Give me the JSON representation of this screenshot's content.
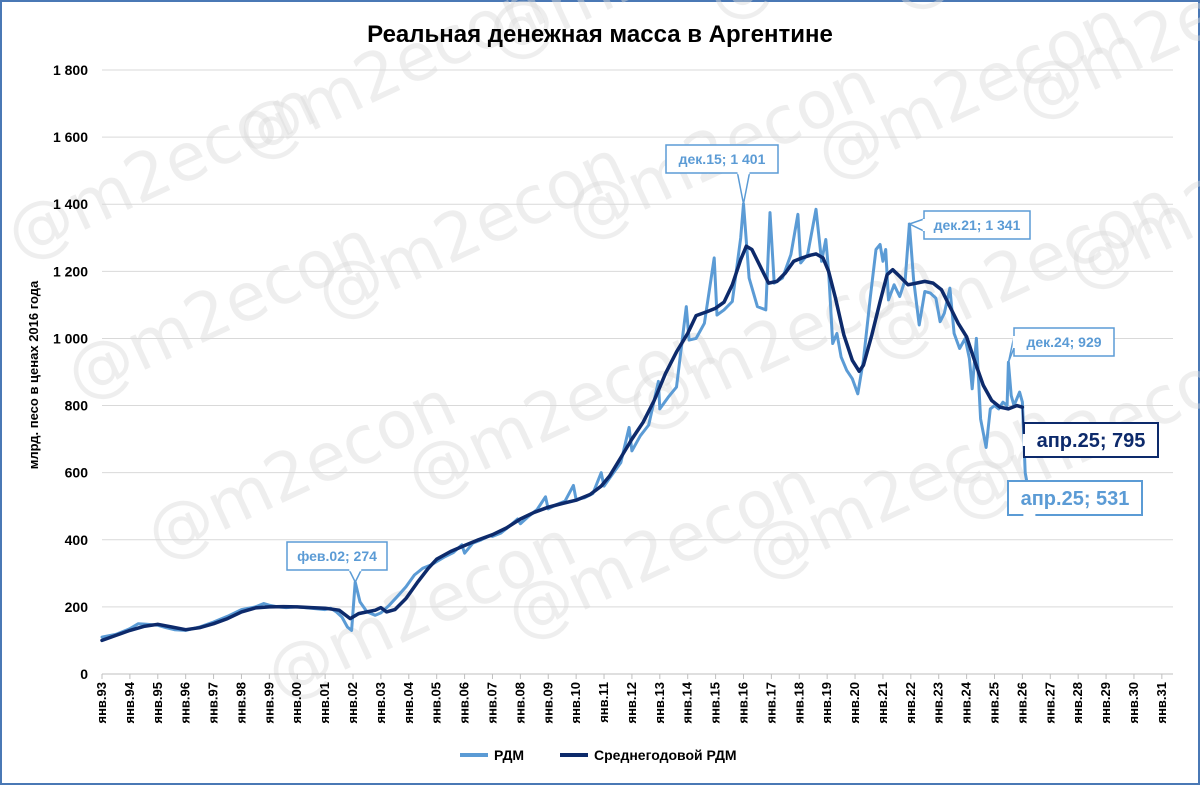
{
  "chart_data": {
    "type": "line",
    "title": "Реальная денежная масса в Аргентине",
    "ylabel": "млрд. песо в ценах 2016 года",
    "xlabel": "",
    "ylim": [
      0,
      1800
    ],
    "y_ticks": [
      "0",
      "200",
      "400",
      "600",
      "800",
      "1 000",
      "1 200",
      "1 400",
      "1 600",
      "1 800"
    ],
    "x_ticks": [
      "янв.93",
      "янв.94",
      "янв.95",
      "янв.96",
      "янв.97",
      "янв.98",
      "янв.99",
      "янв.00",
      "янв.01",
      "янв.02",
      "янв.03",
      "янв.04",
      "янв.05",
      "янв.06",
      "янв.07",
      "янв.08",
      "янв.09",
      "янв.10",
      "янв.11",
      "янв.12",
      "янв.13",
      "янв.14",
      "янв.15",
      "янв.16",
      "янв.17",
      "янв.18",
      "янв.19",
      "янв.20",
      "янв.21",
      "янв.22",
      "янв.23",
      "янв.24",
      "янв.25",
      "янв.26",
      "янв.27",
      "янв.28",
      "янв.29",
      "янв.30",
      "янв.31"
    ],
    "grid": true,
    "legend_position": "bottom",
    "watermark": "@m2econ",
    "series": [
      {
        "name": "РДМ",
        "color": "#5b9bd5",
        "points": [
          [
            1993.0,
            110
          ],
          [
            1993.5,
            118
          ],
          [
            1994.0,
            135
          ],
          [
            1994.3,
            150
          ],
          [
            1994.6,
            148
          ],
          [
            1995.0,
            145
          ],
          [
            1995.3,
            138
          ],
          [
            1995.6,
            132
          ],
          [
            1996.0,
            130
          ],
          [
            1996.5,
            140
          ],
          [
            1997.0,
            155
          ],
          [
            1997.5,
            172
          ],
          [
            1998.0,
            192
          ],
          [
            1998.5,
            200
          ],
          [
            1998.8,
            210
          ],
          [
            1999.0,
            205
          ],
          [
            1999.3,
            200
          ],
          [
            1999.6,
            198
          ],
          [
            2000.0,
            200
          ],
          [
            2000.5,
            196
          ],
          [
            2001.0,
            192
          ],
          [
            2001.2,
            196
          ],
          [
            2001.4,
            185
          ],
          [
            2001.6,
            170
          ],
          [
            2001.8,
            140
          ],
          [
            2001.95,
            130
          ],
          [
            2002.08,
            274
          ],
          [
            2002.25,
            215
          ],
          [
            2002.5,
            185
          ],
          [
            2002.8,
            175
          ],
          [
            2003.0,
            182
          ],
          [
            2003.3,
            205
          ],
          [
            2003.6,
            232
          ],
          [
            2003.9,
            260
          ],
          [
            2004.2,
            295
          ],
          [
            2004.5,
            315
          ],
          [
            2004.8,
            325
          ],
          [
            2005.0,
            335
          ],
          [
            2005.3,
            350
          ],
          [
            2005.6,
            362
          ],
          [
            2005.9,
            385
          ],
          [
            2006.0,
            360
          ],
          [
            2006.3,
            390
          ],
          [
            2006.6,
            400
          ],
          [
            2006.9,
            412
          ],
          [
            2007.0,
            410
          ],
          [
            2007.3,
            420
          ],
          [
            2007.6,
            440
          ],
          [
            2007.9,
            462
          ],
          [
            2008.0,
            448
          ],
          [
            2008.3,
            470
          ],
          [
            2008.6,
            490
          ],
          [
            2008.9,
            528
          ],
          [
            2009.0,
            492
          ],
          [
            2009.3,
            505
          ],
          [
            2009.6,
            515
          ],
          [
            2009.9,
            562
          ],
          [
            2010.0,
            520
          ],
          [
            2010.3,
            525
          ],
          [
            2010.6,
            538
          ],
          [
            2010.9,
            600
          ],
          [
            2011.0,
            560
          ],
          [
            2011.3,
            595
          ],
          [
            2011.6,
            630
          ],
          [
            2011.9,
            735
          ],
          [
            2012.0,
            665
          ],
          [
            2012.3,
            710
          ],
          [
            2012.6,
            742
          ],
          [
            2012.95,
            872
          ],
          [
            2013.0,
            790
          ],
          [
            2013.3,
            825
          ],
          [
            2013.6,
            855
          ],
          [
            2013.95,
            1095
          ],
          [
            2014.05,
            995
          ],
          [
            2014.3,
            1000
          ],
          [
            2014.6,
            1045
          ],
          [
            2014.95,
            1240
          ],
          [
            2015.05,
            1070
          ],
          [
            2015.3,
            1085
          ],
          [
            2015.6,
            1110
          ],
          [
            2015.9,
            1300
          ],
          [
            2016.0,
            1401
          ],
          [
            2016.2,
            1180
          ],
          [
            2016.5,
            1095
          ],
          [
            2016.8,
            1085
          ],
          [
            2016.95,
            1375
          ],
          [
            2017.1,
            1165
          ],
          [
            2017.4,
            1180
          ],
          [
            2017.7,
            1250
          ],
          [
            2017.95,
            1370
          ],
          [
            2018.05,
            1225
          ],
          [
            2018.3,
            1250
          ],
          [
            2018.6,
            1385
          ],
          [
            2018.8,
            1230
          ],
          [
            2018.95,
            1295
          ],
          [
            2019.05,
            1200
          ],
          [
            2019.2,
            985
          ],
          [
            2019.35,
            1015
          ],
          [
            2019.5,
            945
          ],
          [
            2019.7,
            905
          ],
          [
            2019.9,
            880
          ],
          [
            2020.1,
            835
          ],
          [
            2020.3,
            935
          ],
          [
            2020.55,
            1125
          ],
          [
            2020.75,
            1265
          ],
          [
            2020.9,
            1280
          ],
          [
            2021.0,
            1230
          ],
          [
            2021.1,
            1265
          ],
          [
            2021.2,
            1115
          ],
          [
            2021.4,
            1160
          ],
          [
            2021.6,
            1125
          ],
          [
            2021.8,
            1175
          ],
          [
            2021.95,
            1341
          ],
          [
            2022.1,
            1175
          ],
          [
            2022.3,
            1040
          ],
          [
            2022.5,
            1140
          ],
          [
            2022.7,
            1135
          ],
          [
            2022.9,
            1120
          ],
          [
            2023.05,
            1050
          ],
          [
            2023.2,
            1075
          ],
          [
            2023.4,
            1150
          ],
          [
            2023.55,
            1015
          ],
          [
            2023.75,
            970
          ],
          [
            2023.95,
            1000
          ],
          [
            2024.1,
            940
          ],
          [
            2024.2,
            850
          ],
          [
            2024.35,
            1000
          ],
          [
            2024.5,
            760
          ],
          [
            2024.7,
            675
          ],
          [
            2024.85,
            790
          ],
          [
            2025.0,
            800
          ],
          [
            2025.15,
            790
          ],
          [
            2025.3,
            810
          ],
          [
            2025.45,
            800
          ],
          [
            2025.5,
            929
          ],
          [
            2025.6,
            830
          ],
          [
            2025.7,
            800
          ],
          [
            2025.8,
            820
          ],
          [
            2025.9,
            840
          ],
          [
            2026.0,
            810
          ],
          [
            2026.1,
            600
          ],
          [
            2026.25,
            531
          ]
        ]
      },
      {
        "name": "Среднегодовой РДМ",
        "color": "#0d2a6b",
        "points": [
          [
            1993.0,
            100
          ],
          [
            1993.5,
            115
          ],
          [
            1994.0,
            130
          ],
          [
            1994.5,
            142
          ],
          [
            1995.0,
            148
          ],
          [
            1995.5,
            140
          ],
          [
            1996.0,
            132
          ],
          [
            1996.5,
            138
          ],
          [
            1997.0,
            150
          ],
          [
            1997.5,
            165
          ],
          [
            1998.0,
            185
          ],
          [
            1998.5,
            197
          ],
          [
            1999.0,
            200
          ],
          [
            1999.5,
            201
          ],
          [
            2000.0,
            200
          ],
          [
            2000.5,
            198
          ],
          [
            2001.0,
            196
          ],
          [
            2001.5,
            190
          ],
          [
            2001.9,
            165
          ],
          [
            2002.2,
            180
          ],
          [
            2002.5,
            185
          ],
          [
            2002.8,
            190
          ],
          [
            2003.0,
            198
          ],
          [
            2003.2,
            185
          ],
          [
            2003.5,
            192
          ],
          [
            2003.9,
            225
          ],
          [
            2004.3,
            272
          ],
          [
            2004.7,
            315
          ],
          [
            2005.0,
            342
          ],
          [
            2005.5,
            365
          ],
          [
            2006.0,
            383
          ],
          [
            2006.5,
            400
          ],
          [
            2007.0,
            415
          ],
          [
            2007.5,
            435
          ],
          [
            2008.0,
            462
          ],
          [
            2008.5,
            482
          ],
          [
            2009.0,
            497
          ],
          [
            2009.5,
            508
          ],
          [
            2010.0,
            518
          ],
          [
            2010.5,
            535
          ],
          [
            2010.9,
            560
          ],
          [
            2011.2,
            590
          ],
          [
            2011.6,
            645
          ],
          [
            2012.0,
            700
          ],
          [
            2012.4,
            750
          ],
          [
            2012.8,
            815
          ],
          [
            2013.2,
            895
          ],
          [
            2013.6,
            960
          ],
          [
            2014.0,
            1015
          ],
          [
            2014.3,
            1068
          ],
          [
            2014.7,
            1080
          ],
          [
            2015.0,
            1090
          ],
          [
            2015.3,
            1108
          ],
          [
            2015.6,
            1160
          ],
          [
            2015.9,
            1235
          ],
          [
            2016.1,
            1275
          ],
          [
            2016.3,
            1265
          ],
          [
            2016.6,
            1215
          ],
          [
            2016.9,
            1165
          ],
          [
            2017.2,
            1170
          ],
          [
            2017.5,
            1195
          ],
          [
            2017.8,
            1230
          ],
          [
            2018.1,
            1240
          ],
          [
            2018.4,
            1248
          ],
          [
            2018.6,
            1252
          ],
          [
            2018.85,
            1240
          ],
          [
            2019.05,
            1200
          ],
          [
            2019.3,
            1120
          ],
          [
            2019.6,
            1010
          ],
          [
            2019.9,
            935
          ],
          [
            2020.15,
            902
          ],
          [
            2020.3,
            920
          ],
          [
            2020.6,
            1010
          ],
          [
            2020.9,
            1110
          ],
          [
            2021.15,
            1190
          ],
          [
            2021.35,
            1205
          ],
          [
            2021.6,
            1185
          ],
          [
            2021.9,
            1160
          ],
          [
            2022.2,
            1165
          ],
          [
            2022.5,
            1170
          ],
          [
            2022.8,
            1165
          ],
          [
            2023.1,
            1145
          ],
          [
            2023.4,
            1095
          ],
          [
            2023.7,
            1045
          ],
          [
            2024.0,
            1005
          ],
          [
            2024.3,
            930
          ],
          [
            2024.6,
            860
          ],
          [
            2024.9,
            815
          ],
          [
            2025.2,
            795
          ],
          [
            2025.5,
            790
          ],
          [
            2025.8,
            800
          ],
          [
            2026.0,
            795
          ]
        ]
      }
    ],
    "annotations": [
      {
        "text": "фев.02;  274",
        "series": 0,
        "x": 2002.08,
        "y": 274,
        "style": "small"
      },
      {
        "text": "дек.15;  1 401",
        "series": 0,
        "x": 2016.0,
        "y": 1401,
        "style": "small"
      },
      {
        "text": "дек.21;  1 341",
        "series": 0,
        "x": 2021.95,
        "y": 1341,
        "style": "small"
      },
      {
        "text": "дек.24;  929",
        "series": 0,
        "x": 2025.5,
        "y": 929,
        "style": "small"
      },
      {
        "text": "апр.25;   795",
        "series": 1,
        "x": 2026.0,
        "y": 795,
        "style": "big"
      },
      {
        "text": "апр.25;   531",
        "series": 0,
        "x": 2026.25,
        "y": 531,
        "style": "big"
      }
    ]
  }
}
